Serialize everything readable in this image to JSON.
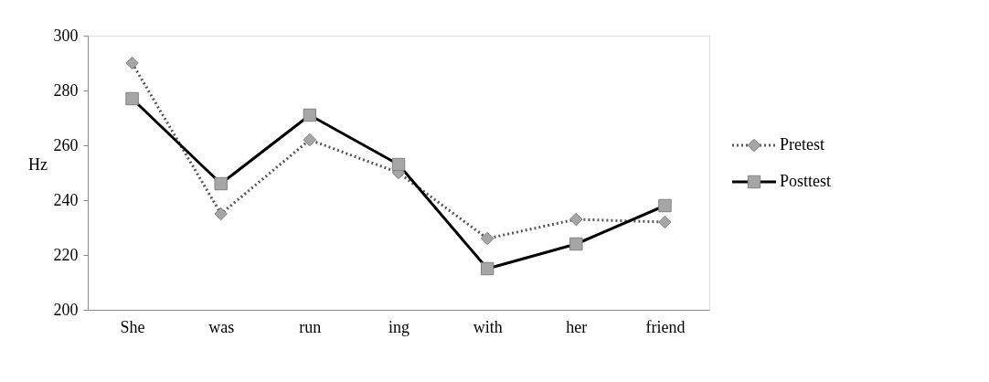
{
  "chart_data": {
    "type": "line",
    "ylabel": "Hz",
    "categories": [
      "She",
      "was",
      "run",
      "ing",
      "with",
      "her",
      "friend"
    ],
    "series": [
      {
        "name": "Pretest",
        "color": "#595959",
        "marker": "diamond",
        "line_style": "dotted",
        "values": [
          290,
          235,
          262,
          250,
          226,
          233,
          232
        ]
      },
      {
        "name": "Posttest",
        "color": "#000000",
        "marker": "square",
        "line_style": "solid",
        "values": [
          277,
          246,
          271,
          253,
          215,
          224,
          238
        ]
      }
    ],
    "ylim": [
      200,
      300
    ],
    "yticks": [
      200,
      220,
      240,
      260,
      280,
      300
    ],
    "grid": false,
    "legend": "right"
  }
}
